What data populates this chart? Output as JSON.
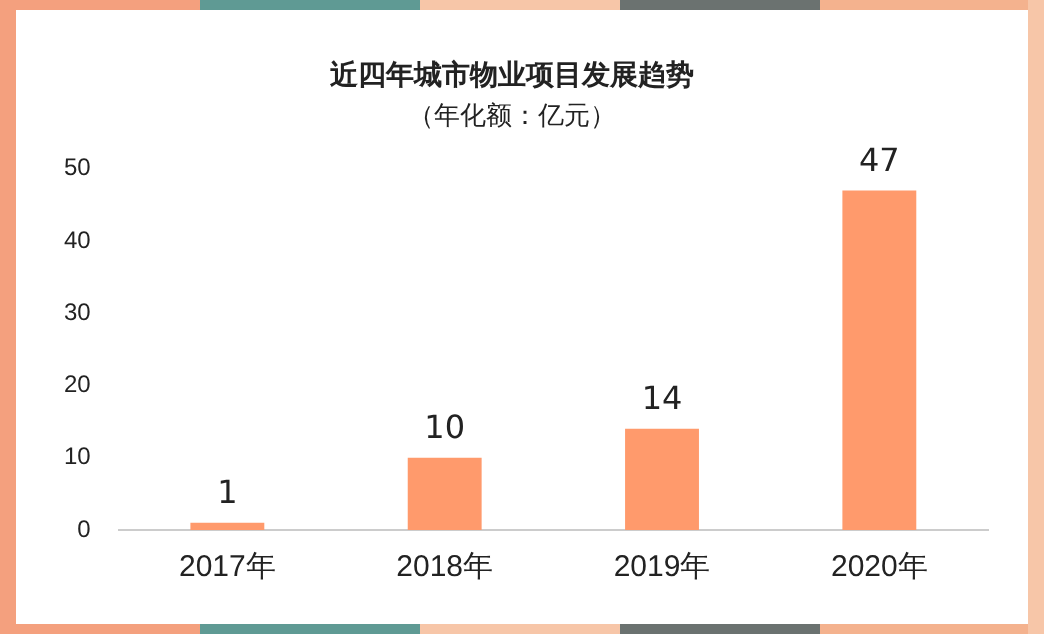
{
  "chart_data": {
    "type": "bar",
    "title": "近四年城市物业项目发展趋势",
    "subtitle": "（年化额：亿元）",
    "categories": [
      "2017年",
      "2018年",
      "2019年",
      "2020年"
    ],
    "values": [
      1,
      10,
      14,
      47
    ],
    "color": "#ff9a6c",
    "ylim": [
      0,
      50
    ],
    "yticks": [
      0,
      10,
      20,
      30,
      40,
      50
    ],
    "grid": false,
    "data_labels": true
  }
}
